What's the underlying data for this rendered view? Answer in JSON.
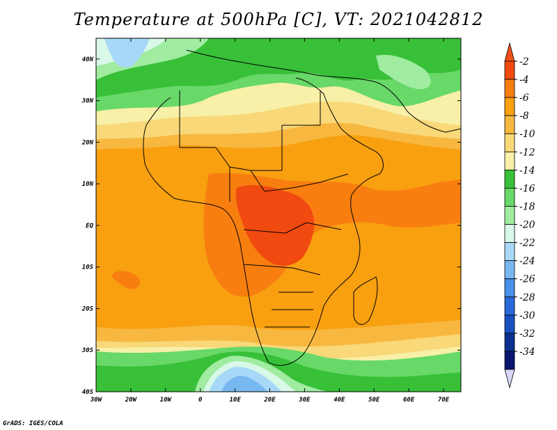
{
  "title": "Temperature at 500hPa [C], VT: 2021042812",
  "credit": "GrADS: IGES/COLA",
  "map": {
    "x_range": [
      -30,
      75
    ],
    "y_range": [
      -40,
      45
    ],
    "x_ticks": [
      {
        "v": -30,
        "label": "30W"
      },
      {
        "v": -20,
        "label": "20W"
      },
      {
        "v": -10,
        "label": "10W"
      },
      {
        "v": 0,
        "label": "0"
      },
      {
        "v": 10,
        "label": "10E"
      },
      {
        "v": 20,
        "label": "20E"
      },
      {
        "v": 30,
        "label": "30E"
      },
      {
        "v": 40,
        "label": "40E"
      },
      {
        "v": 50,
        "label": "50E"
      },
      {
        "v": 60,
        "label": "60E"
      },
      {
        "v": 70,
        "label": "70E"
      }
    ],
    "y_ticks": [
      {
        "v": 40,
        "label": "40N"
      },
      {
        "v": 30,
        "label": "30N"
      },
      {
        "v": 20,
        "label": "20N"
      },
      {
        "v": 10,
        "label": "10N"
      },
      {
        "v": 0,
        "label": "EQ"
      },
      {
        "v": -10,
        "label": "10S"
      },
      {
        "v": -20,
        "label": "20S"
      },
      {
        "v": -30,
        "label": "30S"
      },
      {
        "v": -40,
        "label": "40S"
      }
    ]
  },
  "colorbar": {
    "labels": [
      "-2",
      "-4",
      "-6",
      "-8",
      "-10",
      "-12",
      "-14",
      "-16",
      "-18",
      "-20",
      "-22",
      "-24",
      "-26",
      "-28",
      "-30",
      "-32",
      "-34"
    ],
    "colors": [
      "#f04a10",
      "#f87e10",
      "#f8a010",
      "#f8b840",
      "#f8d878",
      "#f8f0a8",
      "#38c038",
      "#68d868",
      "#a0eca0",
      "#d8f8e8",
      "#a8d8f8",
      "#78b8f0",
      "#4890e8",
      "#2868d8",
      "#1850c0",
      "#0a3090",
      "#0a1670"
    ],
    "top_color": "#f05018",
    "bottom_color": "#d8d8f8"
  }
}
